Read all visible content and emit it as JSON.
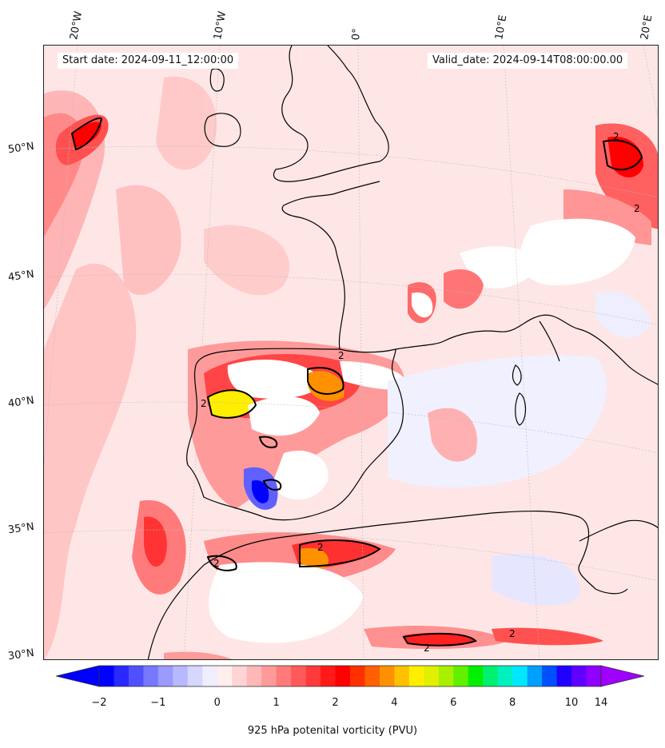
{
  "map": {
    "start_date": "Start date: 2024-09-11_12:00:00",
    "valid_date": "Valid_date: 2024-09-14T08:00:00.00",
    "lon_labels": [
      "20°W",
      "10°W",
      "0°",
      "10°E",
      "20°E"
    ],
    "lat_labels": [
      "50°N",
      "45°N",
      "40°N",
      "35°N",
      "30°N"
    ],
    "contour_label": "2",
    "projection": "conic",
    "field": "925 hPa potential vorticity"
  },
  "colorbar": {
    "title": "925 hPa potenital vorticity (PVU)",
    "ticks": [
      "−2",
      "−1",
      "0",
      "1",
      "2",
      "4",
      "6",
      "8",
      "10",
      "14"
    ],
    "colors": [
      "#0000ff",
      "#2828ff",
      "#5050ff",
      "#7878ff",
      "#9a9aff",
      "#b8b8ff",
      "#d6d6ff",
      "#eeeeff",
      "#ffeeee",
      "#ffd4d4",
      "#ffb8b8",
      "#ff9a9a",
      "#ff7a7a",
      "#ff5a5a",
      "#ff3a3a",
      "#ff1a1a",
      "#ff0000",
      "#ff3000",
      "#ff6000",
      "#ff9000",
      "#ffc000",
      "#ffee00",
      "#e0f000",
      "#a8f000",
      "#60f000",
      "#00f000",
      "#00f070",
      "#00f0c0",
      "#00e8ff",
      "#00a0ff",
      "#0050ff",
      "#2000ff",
      "#6000ff",
      "#9000ff"
    ],
    "extend_low_color": "#0000ff",
    "extend_high_color": "#a000ff"
  }
}
